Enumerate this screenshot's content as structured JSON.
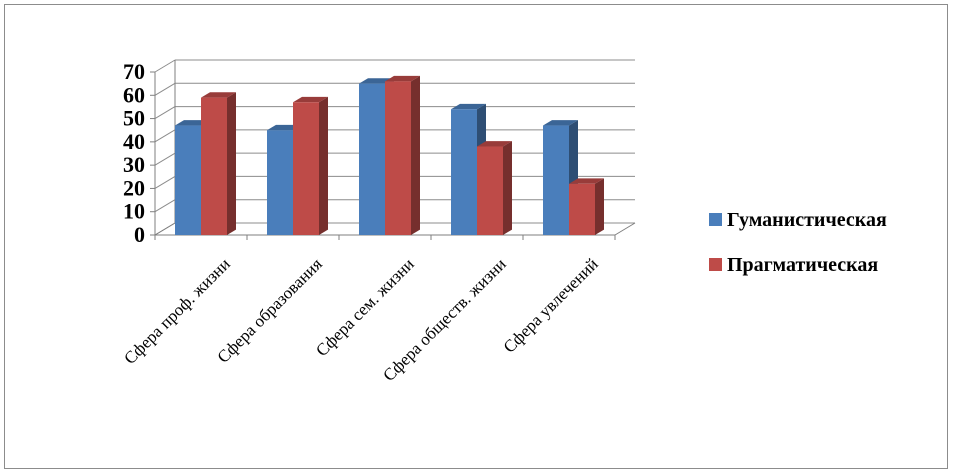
{
  "chart_data": {
    "type": "bar",
    "categories": [
      "Сфера проф. жизни",
      "Сфера образования",
      "Сфера сем. жизни",
      "Сфера обществ. жизни",
      "Сфера увлечений"
    ],
    "series": [
      {
        "name": "Гуманистическая",
        "values": [
          47,
          45,
          65,
          54,
          47
        ],
        "color": "#4a7ebb"
      },
      {
        "name": "Прагматическая",
        "values": [
          59,
          57,
          66,
          38,
          22
        ],
        "color": "#be4b48"
      }
    ],
    "yticks": [
      "0",
      "10",
      "20",
      "30",
      "40",
      "50",
      "60",
      "70"
    ],
    "ylim": [
      0,
      70
    ],
    "grid": true,
    "legend_position": "right",
    "style": "3d-clustered-column"
  }
}
